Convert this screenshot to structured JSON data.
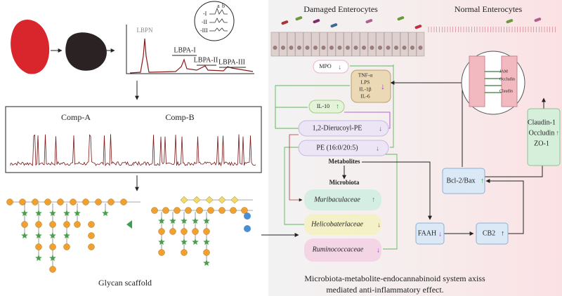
{
  "extraction": {
    "peaks": [
      "LBPN",
      "LBPA-I",
      "LBPA-II",
      "LBPA-III"
    ],
    "inset_traces": [
      "-I",
      "-II",
      "-III"
    ],
    "inset_columns": [
      "a",
      "b"
    ]
  },
  "components": [
    "Comp-A",
    "Comp-B"
  ],
  "glycan_label": "Glycan scaffold",
  "cells": {
    "damaged": "Damaged Enterocytes",
    "normal": "Normal Enterocytes"
  },
  "mpo": {
    "label": "MPO",
    "trend": "↓"
  },
  "cytokines": {
    "labels": [
      "TNF-α",
      "LPS",
      "IL-1β",
      "IL-6"
    ],
    "trend": "↓"
  },
  "il10": {
    "label": "IL-10",
    "trend": "↑"
  },
  "metabolites": {
    "title": "Metabolites",
    "items": [
      {
        "label": "1,2-Dierucoyl-PE",
        "trend": "↓"
      },
      {
        "label": "PE (16:0/20:5)",
        "trend": "↓"
      }
    ]
  },
  "microbiota": {
    "title": "Microbiota",
    "items": [
      {
        "label": "Muribaculaceae",
        "trend": "↑"
      },
      {
        "label": "Helicobaterlaceae",
        "trend": "↓"
      },
      {
        "label": "Ruminococcaceae",
        "trend": "↓"
      }
    ]
  },
  "faah": {
    "label": "FAAH",
    "trend": "↓"
  },
  "cb2": {
    "label": "CB2",
    "trend": "↑"
  },
  "bcl": {
    "label": "Bcl-2/Bax",
    "trend": "↑"
  },
  "junction": {
    "labels": [
      "Claudin-1",
      "Occludin",
      "ZO-1"
    ],
    "trend": "↑"
  },
  "junction_inset": [
    "JAM",
    "Occludin",
    "Claudin"
  ],
  "caption": [
    "Microbiota-metabolite-endocannabinoid system axiss",
    "mediated anti-inflammatory effect."
  ]
}
